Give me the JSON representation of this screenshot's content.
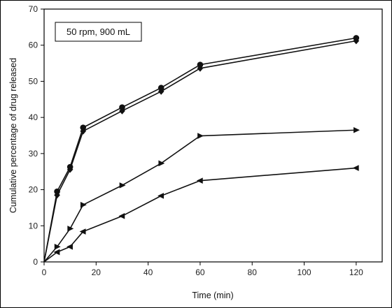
{
  "chart_data": {
    "type": "line",
    "xlabel": "Time (min)",
    "ylabel": "Cumulative percentage of drug released",
    "annotation": "50 rpm, 900 mL",
    "xlim": [
      0,
      130
    ],
    "ylim": [
      0,
      70
    ],
    "x_ticks": [
      0,
      20,
      40,
      60,
      80,
      100,
      120
    ],
    "y_ticks": [
      0,
      10,
      20,
      30,
      40,
      50,
      60,
      70
    ],
    "x": [
      0,
      5,
      10,
      15,
      30,
      45,
      60,
      120
    ],
    "grid": false,
    "series": [
      {
        "marker": "circle",
        "values": [
          0,
          19.5,
          26.3,
          37.2,
          42.8,
          48.2,
          54.6,
          62.0
        ]
      },
      {
        "marker": "diamond",
        "values": [
          0,
          18.5,
          25.6,
          36.2,
          41.8,
          47.2,
          53.6,
          61.2
        ]
      },
      {
        "marker": "triangle-right",
        "values": [
          0,
          4.2,
          9.2,
          15.8,
          21.2,
          27.3,
          34.9,
          36.5
        ]
      },
      {
        "marker": "triangle-left",
        "values": [
          0,
          2.7,
          4.2,
          8.4,
          12.7,
          18.3,
          22.5,
          26.0
        ]
      }
    ]
  }
}
